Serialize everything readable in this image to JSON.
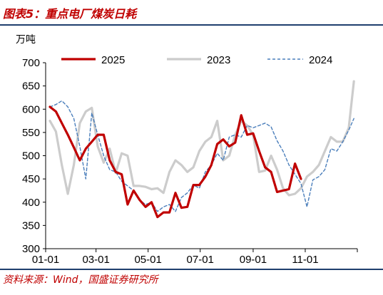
{
  "header": {
    "title": "图表5：重点电厂煤炭日耗"
  },
  "footer": {
    "source": "资料来源：Wind，国盛证券研究所"
  },
  "colors": {
    "series_2025": "#c00000",
    "series_2023": "#cccccc",
    "series_2024": "#4a7ebb",
    "rule": "#1f3f6e",
    "accent": "#c00000"
  },
  "chart_data": {
    "type": "line",
    "unit_label": "万吨",
    "x_tick_labels": [
      "01-01",
      "03-01",
      "05-01",
      "07-01",
      "09-01",
      "11-01"
    ],
    "x_tick_days": [
      0,
      59,
      120,
      181,
      243,
      304
    ],
    "xlim_days": [
      0,
      365
    ],
    "y_ticks": [
      300,
      350,
      400,
      450,
      500,
      550,
      600,
      650,
      700
    ],
    "ylim": [
      300,
      700
    ],
    "legend_position": "top",
    "series": [
      {
        "name": "2025",
        "style": "solid-thick",
        "x": [
          5,
          12,
          19,
          26,
          33,
          40,
          47,
          54,
          61,
          68,
          75,
          82,
          89,
          96,
          103,
          110,
          117,
          124,
          131,
          138,
          145,
          152,
          159,
          166,
          173,
          180,
          187,
          194,
          201,
          208,
          215,
          222,
          229,
          236,
          243,
          250,
          257,
          264,
          271,
          278,
          285,
          292,
          299
        ],
        "y": [
          605,
          595,
          570,
          545,
          518,
          490,
          515,
          530,
          545,
          545,
          490,
          465,
          460,
          395,
          425,
          405,
          390,
          400,
          368,
          378,
          378,
          420,
          388,
          390,
          437,
          437,
          455,
          480,
          525,
          535,
          520,
          528,
          587,
          545,
          548,
          510,
          475,
          465,
          422,
          425,
          428,
          483,
          450
        ]
      },
      {
        "name": "2023",
        "style": "solid-light",
        "x": [
          5,
          12,
          19,
          26,
          33,
          40,
          47,
          54,
          61,
          68,
          75,
          82,
          89,
          96,
          103,
          110,
          117,
          124,
          131,
          138,
          145,
          152,
          159,
          166,
          173,
          180,
          187,
          194,
          201,
          208,
          215,
          222,
          229,
          236,
          243,
          250,
          257,
          264,
          271,
          278,
          285,
          292,
          299,
          306,
          313,
          320,
          327,
          334,
          341,
          348,
          355,
          361
        ],
        "y": [
          575,
          552,
          480,
          418,
          480,
          570,
          595,
          603,
          520,
          485,
          515,
          463,
          505,
          500,
          435,
          435,
          433,
          428,
          430,
          420,
          465,
          490,
          480,
          465,
          475,
          510,
          530,
          540,
          575,
          490,
          500,
          545,
          575,
          565,
          545,
          465,
          468,
          500,
          470,
          430,
          415,
          418,
          430,
          455,
          465,
          480,
          510,
          540,
          530,
          530,
          560,
          660
        ]
      },
      {
        "name": "2024",
        "style": "dashed",
        "x": [
          5,
          12,
          19,
          26,
          33,
          40,
          47,
          54,
          61,
          68,
          75,
          82,
          89,
          96,
          103,
          110,
          117,
          124,
          131,
          138,
          145,
          152,
          159,
          166,
          173,
          180,
          187,
          194,
          201,
          208,
          215,
          222,
          229,
          236,
          243,
          250,
          257,
          264,
          271,
          278,
          285,
          292,
          299,
          306,
          313,
          320,
          327,
          334,
          341,
          348,
          355,
          361
        ],
        "y": [
          605,
          610,
          618,
          605,
          580,
          520,
          450,
          592,
          545,
          500,
          470,
          465,
          445,
          435,
          425,
          405,
          395,
          400,
          380,
          390,
          395,
          380,
          410,
          420,
          437,
          430,
          465,
          480,
          505,
          490,
          540,
          545,
          540,
          565,
          560,
          565,
          570,
          562,
          532,
          510,
          480,
          460,
          440,
          390,
          448,
          455,
          470,
          515,
          510,
          530,
          555,
          580
        ]
      }
    ]
  }
}
